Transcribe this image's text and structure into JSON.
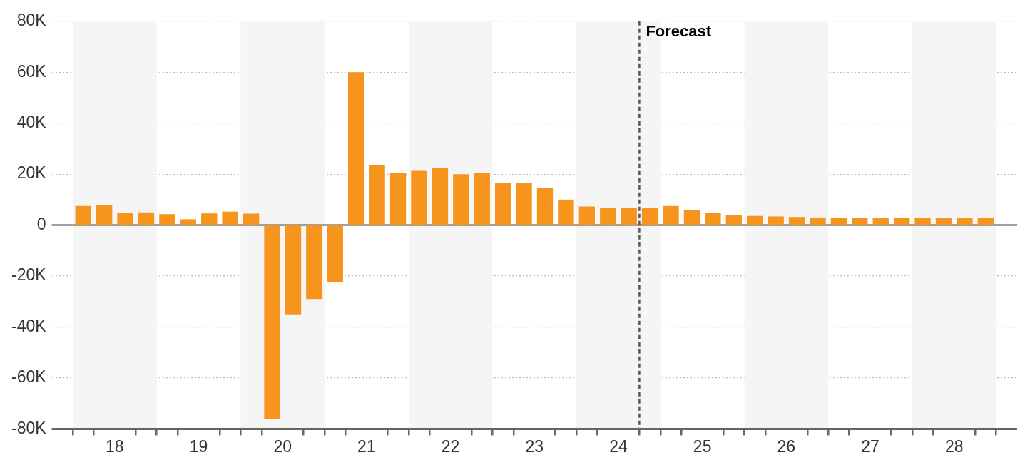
{
  "chart_data": {
    "type": "bar",
    "color": "#f7941d",
    "x": [
      18.125,
      18.375,
      18.625,
      18.875,
      19.125,
      19.375,
      19.625,
      19.875,
      20.125,
      20.375,
      20.625,
      20.875,
      21.125,
      21.375,
      21.625,
      21.875,
      22.125,
      22.375,
      22.625,
      22.875,
      23.125,
      23.375,
      23.625,
      23.875,
      24.125,
      24.375,
      24.625,
      24.875,
      25.125,
      25.375,
      25.625,
      25.875,
      26.125,
      26.375,
      26.625,
      26.875,
      27.125,
      27.375,
      27.625,
      27.875,
      28.125,
      28.375,
      28.625,
      28.875
    ],
    "values": [
      7500,
      8000,
      4800,
      5000,
      4300,
      2300,
      4600,
      5300,
      4500,
      -76000,
      -35000,
      -29000,
      -22500,
      60000,
      23500,
      20500,
      21300,
      22400,
      20000,
      20400,
      16700,
      16500,
      14500,
      10000,
      7300,
      6600,
      6600,
      6600,
      7500,
      5800,
      4700,
      4000,
      3600,
      3400,
      3200,
      3000,
      2900,
      2800,
      2800,
      2800,
      2800,
      2800,
      2800,
      2800
    ],
    "xlim": [
      17.75,
      29.25
    ],
    "xticks": [
      {
        "value": 18,
        "label": null
      },
      {
        "value": 18.25,
        "label": null
      },
      {
        "value": 18.5,
        "label": "18"
      },
      {
        "value": 18.75,
        "label": null
      },
      {
        "value": 19,
        "label": null
      },
      {
        "value": 19.25,
        "label": null
      },
      {
        "value": 19.5,
        "label": "19"
      },
      {
        "value": 19.75,
        "label": null
      },
      {
        "value": 20,
        "label": null
      },
      {
        "value": 20.25,
        "label": null
      },
      {
        "value": 20.5,
        "label": "20"
      },
      {
        "value": 20.75,
        "label": null
      },
      {
        "value": 21,
        "label": null
      },
      {
        "value": 21.25,
        "label": null
      },
      {
        "value": 21.5,
        "label": "21"
      },
      {
        "value": 21.75,
        "label": null
      },
      {
        "value": 22,
        "label": null
      },
      {
        "value": 22.25,
        "label": null
      },
      {
        "value": 22.5,
        "label": "22"
      },
      {
        "value": 22.75,
        "label": null
      },
      {
        "value": 23,
        "label": null
      },
      {
        "value": 23.25,
        "label": null
      },
      {
        "value": 23.5,
        "label": "23"
      },
      {
        "value": 23.75,
        "label": null
      },
      {
        "value": 24,
        "label": null
      },
      {
        "value": 24.25,
        "label": null
      },
      {
        "value": 24.5,
        "label": "24"
      },
      {
        "value": 24.75,
        "label": null
      },
      {
        "value": 25,
        "label": null
      },
      {
        "value": 25.25,
        "label": null
      },
      {
        "value": 25.5,
        "label": "25"
      },
      {
        "value": 25.75,
        "label": null
      },
      {
        "value": 26,
        "label": null
      },
      {
        "value": 26.25,
        "label": null
      },
      {
        "value": 26.5,
        "label": "26"
      },
      {
        "value": 26.75,
        "label": null
      },
      {
        "value": 27,
        "label": null
      },
      {
        "value": 27.25,
        "label": null
      },
      {
        "value": 27.5,
        "label": "27"
      },
      {
        "value": 27.75,
        "label": null
      },
      {
        "value": 28,
        "label": null
      },
      {
        "value": 28.25,
        "label": null
      },
      {
        "value": 28.5,
        "label": "28"
      },
      {
        "value": 28.75,
        "label": null
      },
      {
        "value": 29,
        "label": null
      }
    ],
    "ylim": [
      -80000,
      80000
    ],
    "yticks": [
      {
        "value": -80000,
        "label": "-80K"
      },
      {
        "value": -60000,
        "label": "-60K"
      },
      {
        "value": -40000,
        "label": "-40K"
      },
      {
        "value": -20000,
        "label": "-20K"
      },
      {
        "value": 0,
        "label": "0"
      },
      {
        "value": 20000,
        "label": "20K"
      },
      {
        "value": 40000,
        "label": "40K"
      },
      {
        "value": 60000,
        "label": "60K"
      },
      {
        "value": 80000,
        "label": "80K"
      }
    ],
    "grid": "y",
    "legend": false,
    "bands": [
      {
        "axis": "x",
        "from": 18,
        "to": 19,
        "color": "#f5f5f5"
      },
      {
        "axis": "x",
        "from": 20,
        "to": 21,
        "color": "#f5f5f5"
      },
      {
        "axis": "x",
        "from": 22,
        "to": 23,
        "color": "#f5f5f5"
      },
      {
        "axis": "x",
        "from": 24,
        "to": 25,
        "color": "#f5f5f5"
      },
      {
        "axis": "x",
        "from": 26,
        "to": 27,
        "color": "#f5f5f5"
      },
      {
        "axis": "x",
        "from": 28,
        "to": 29,
        "color": "#f5f5f5"
      }
    ],
    "ref_lines": [
      {
        "axis": "x",
        "value": 24.75,
        "label": "Forecast",
        "color": "#555555",
        "line_style": "dashed"
      }
    ]
  }
}
